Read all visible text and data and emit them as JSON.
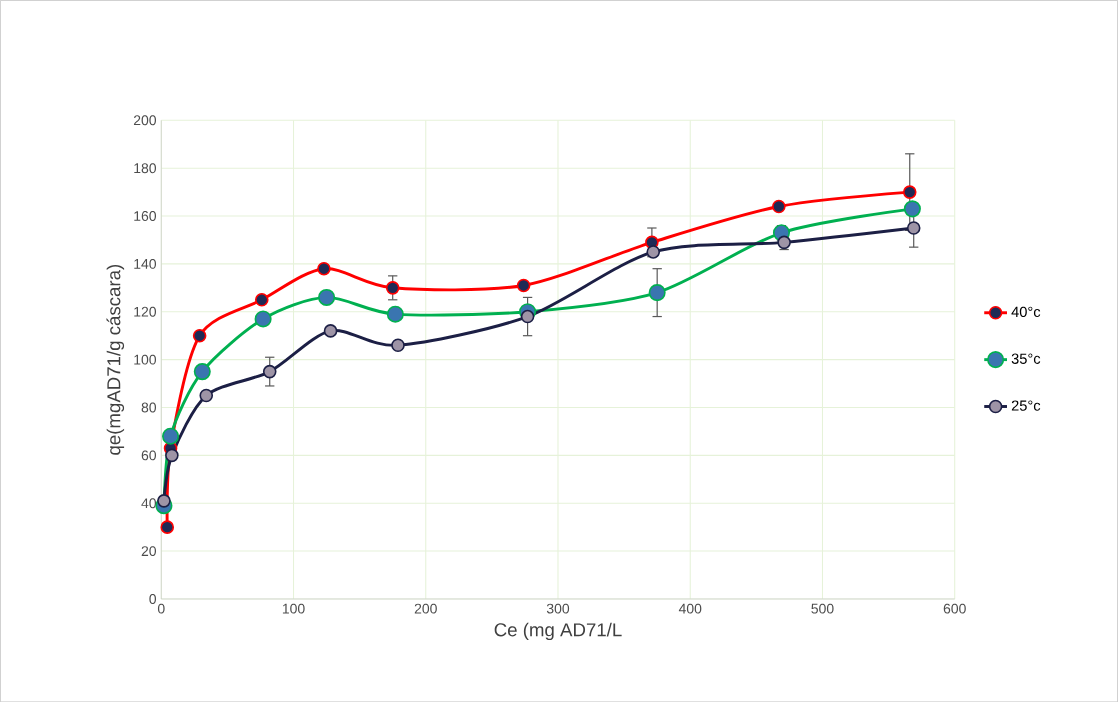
{
  "chart_data": {
    "type": "line",
    "xlabel": "Ce (mg AD71/L",
    "ylabel": "qe(mgAD71/g cáscara)",
    "xlim": [
      0,
      600
    ],
    "xticks": [
      0,
      100,
      200,
      300,
      400,
      500,
      600
    ],
    "ylim": [
      0,
      200
    ],
    "yticks": [
      0,
      20,
      40,
      60,
      80,
      100,
      120,
      140,
      160,
      180,
      200
    ],
    "grid": true,
    "legend": "right",
    "marker": "circle",
    "line_style": "solid",
    "series": [
      {
        "name": "40°c",
        "color": "#ff0000",
        "x": [
          4.5,
          7,
          29,
          76,
          123,
          175,
          274,
          371,
          467,
          566
        ],
        "values": [
          30,
          63,
          110,
          125,
          138,
          130,
          131,
          149,
          164,
          170
        ],
        "errors": [
          null,
          null,
          null,
          null,
          null,
          5,
          null,
          6,
          null,
          16
        ]
      },
      {
        "name": "35°c",
        "color": "#00b050",
        "x": [
          2,
          7,
          31,
          77,
          125,
          177,
          277,
          375,
          469,
          568
        ],
        "values": [
          39,
          68,
          95,
          117,
          126,
          119,
          120,
          128,
          153,
          163
        ],
        "errors": [
          null,
          null,
          null,
          null,
          null,
          null,
          null,
          10,
          3,
          null
        ]
      },
      {
        "name": "25°c",
        "color": "#1c1f45",
        "x": [
          2,
          8,
          34,
          82,
          128,
          179,
          277,
          372,
          471,
          569
        ],
        "values": [
          41,
          60,
          85,
          95,
          112,
          106,
          118,
          145,
          149,
          155
        ],
        "errors": [
          null,
          null,
          null,
          6,
          null,
          null,
          8,
          null,
          3,
          8
        ]
      }
    ]
  }
}
